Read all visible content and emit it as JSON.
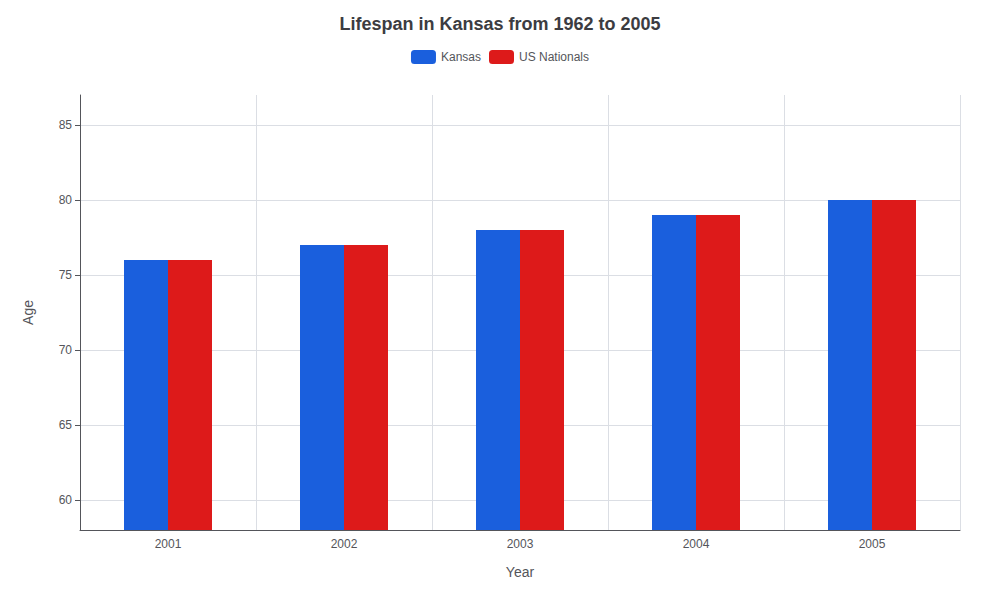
{
  "chart_data": {
    "type": "bar",
    "title": "Lifespan in Kansas from 1962 to 2005",
    "x_label": "Year",
    "y_label": "Age",
    "categories": [
      "2001",
      "2002",
      "2003",
      "2004",
      "2005"
    ],
    "series": [
      {
        "name": "Kansas",
        "color": "#1a5fdd",
        "values": [
          76,
          77,
          78,
          79,
          80
        ]
      },
      {
        "name": "US Nationals",
        "color": "#dd1a1a",
        "values": [
          76,
          77,
          78,
          79,
          80
        ]
      }
    ],
    "ylim": [
      58,
      87
    ],
    "yticks": [
      60,
      65,
      70,
      75,
      80,
      85
    ],
    "grid": true,
    "legend": "top"
  }
}
